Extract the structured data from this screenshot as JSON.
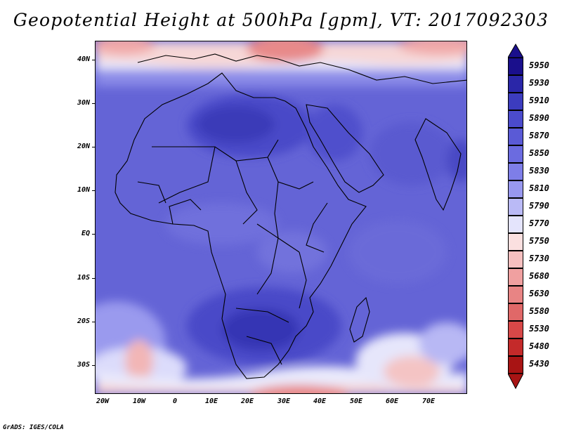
{
  "title": "Geopotential Height at 500hPa [gpm], VT: 2017092303",
  "credit": "GrADS: IGES/COLA",
  "map": {
    "projection": "latlon",
    "lon_range": [
      -23,
      80
    ],
    "lat_range": [
      -37,
      45
    ],
    "lat_labels": [
      "40N",
      "30N",
      "20N",
      "10N",
      "EQ",
      "10S",
      "20S",
      "30S"
    ],
    "lat_values": [
      40,
      30,
      20,
      10,
      0,
      -10,
      -20,
      -30
    ],
    "lon_labels": [
      "20W",
      "10W",
      "0",
      "10E",
      "20E",
      "30E",
      "40E",
      "50E",
      "60E",
      "70E"
    ],
    "lon_values": [
      -20,
      -10,
      0,
      10,
      20,
      30,
      40,
      50,
      60,
      70
    ]
  },
  "colorbar": {
    "labels": [
      "5950",
      "5930",
      "5910",
      "5890",
      "5870",
      "5850",
      "5830",
      "5810",
      "5790",
      "5770",
      "5750",
      "5730",
      "5680",
      "5630",
      "5580",
      "5530",
      "5480",
      "5430"
    ],
    "colors": [
      "#1a0f8c",
      "#2a26a8",
      "#3c3cbe",
      "#4b4bcc",
      "#5a5ad6",
      "#6b6be0",
      "#7e7ee8",
      "#9898ef",
      "#babaf6",
      "#e4e4fc",
      "#fbe0e0",
      "#f6c0c0",
      "#f0a0a0",
      "#e88484",
      "#e06868",
      "#d84848",
      "#c42a2a",
      "#a81414"
    ],
    "triangle_top_color": "#1a0f8c",
    "triangle_bottom_color": "#a81414"
  }
}
